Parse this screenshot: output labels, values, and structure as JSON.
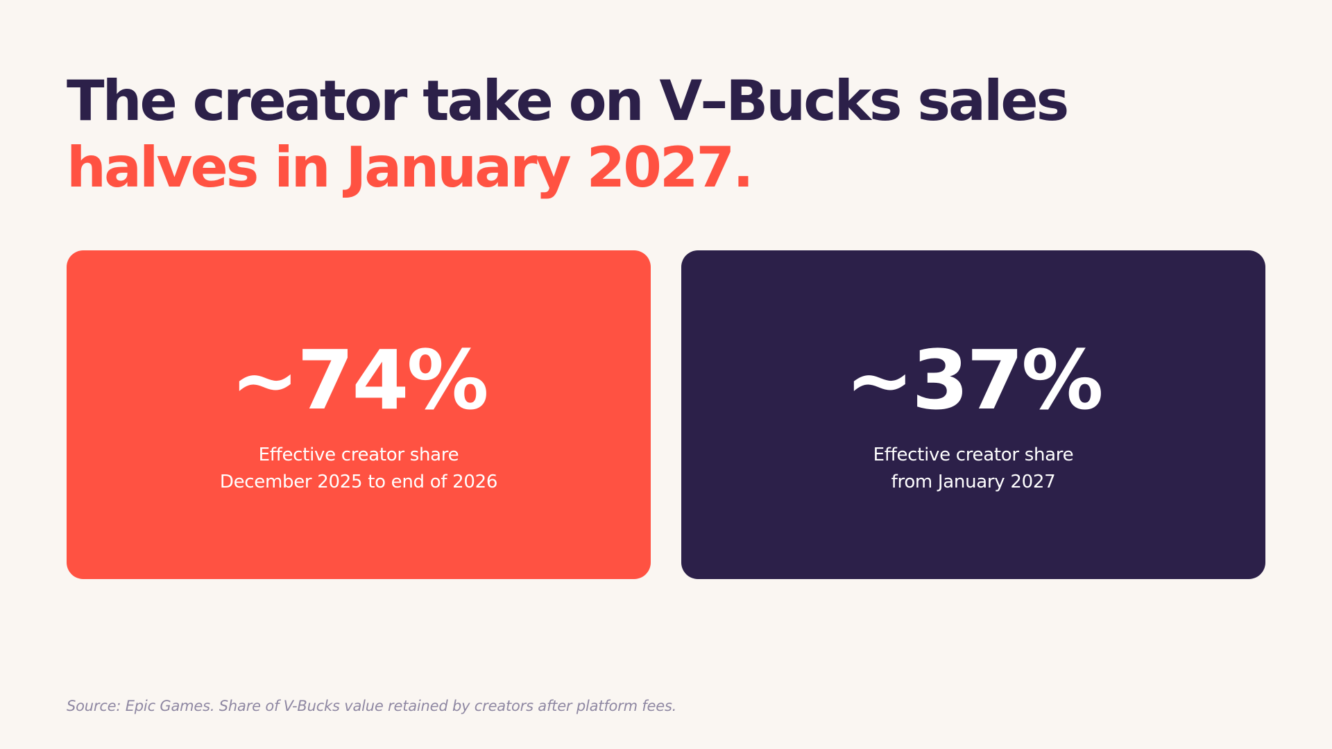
{
  "headline": {
    "main": "The creator take on V–Bucks sales ",
    "accent": "halves in January 2027."
  },
  "cards": [
    {
      "value": "~74%",
      "label_line1": "Effective creator share",
      "label_line2": "December 2025 to end of 2026",
      "background": "#FF5242"
    },
    {
      "value": "~37%",
      "label_line1": "Effective creator share",
      "label_line2": "from January 2027",
      "background": "#2C2049"
    }
  ],
  "source": "Source: Epic Games. Share of V-Bucks value retained by creators after platform fees.",
  "colors": {
    "background": "#FAF6F2",
    "accent": "#FF5242",
    "dark": "#2C2049",
    "muted": "#8E87A2"
  }
}
